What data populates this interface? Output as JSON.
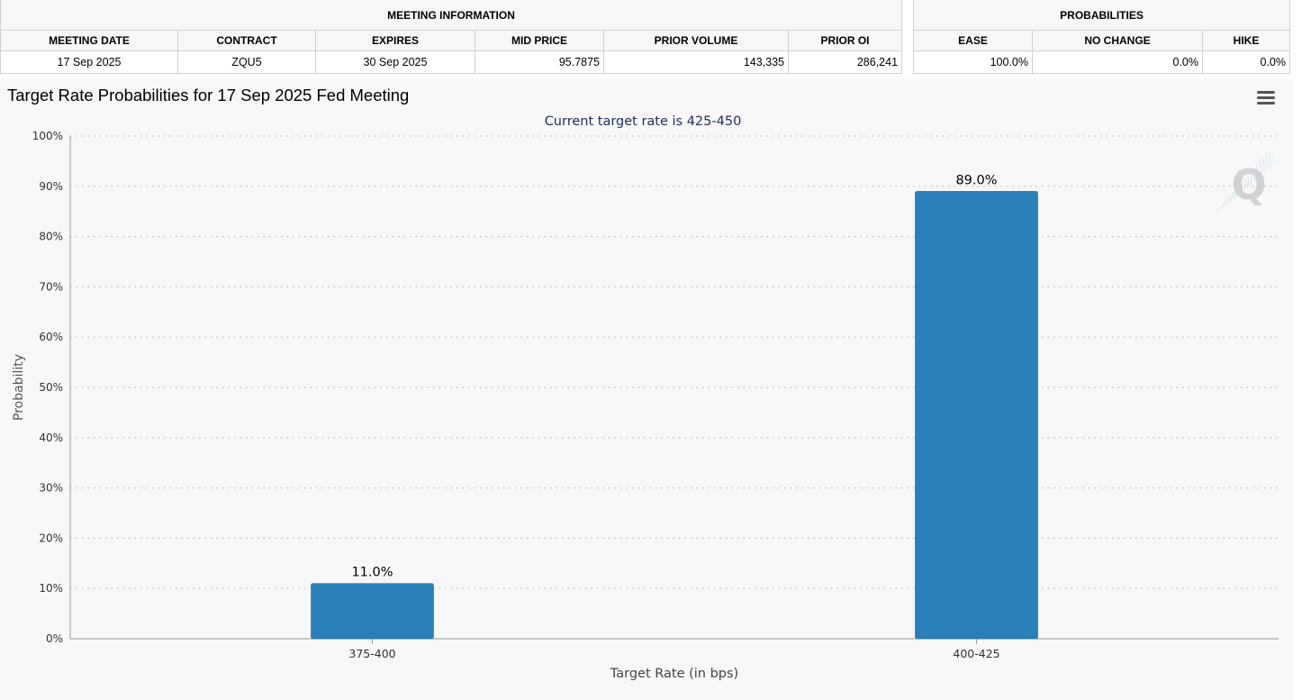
{
  "meeting_info": {
    "group_label": "MEETING INFORMATION",
    "headers": [
      "MEETING DATE",
      "CONTRACT",
      "EXPIRES",
      "MID PRICE",
      "PRIOR VOLUME",
      "PRIOR OI"
    ],
    "values": [
      "17 Sep 2025",
      "ZQU5",
      "30 Sep 2025",
      "95.7875",
      "143,335",
      "286,241"
    ]
  },
  "probabilities": {
    "group_label": "PROBABILITIES",
    "headers": [
      "EASE",
      "NO CHANGE",
      "HIKE"
    ],
    "values": [
      "100.0%",
      "0.0%",
      "0.0%"
    ]
  },
  "colors": {
    "bar": "#2a7fb8",
    "subtitle": "#1f2d5c",
    "panel_bg": "#f7f7f7"
  },
  "chart_data": {
    "type": "bar",
    "title": "Target Rate Probabilities for 17 Sep 2025 Fed Meeting",
    "subtitle": "Current target rate is 425-450",
    "xlabel": "Target Rate (in bps)",
    "ylabel": "Probability",
    "categories": [
      "375-400",
      "400-425"
    ],
    "values": [
      11.0,
      89.0
    ],
    "data_labels": [
      "11.0%",
      "89.0%"
    ],
    "ylim": [
      0,
      100
    ],
    "yticks": [
      0,
      10,
      20,
      30,
      40,
      50,
      60,
      70,
      80,
      90,
      100
    ],
    "ytick_labels": [
      "0%",
      "10%",
      "20%",
      "30%",
      "40%",
      "50%",
      "60%",
      "70%",
      "80%",
      "90%",
      "100%"
    ],
    "grid": true,
    "legend": "none",
    "watermark_icon": "q-logo-icon",
    "menu_icon": "hamburger-menu-icon"
  }
}
